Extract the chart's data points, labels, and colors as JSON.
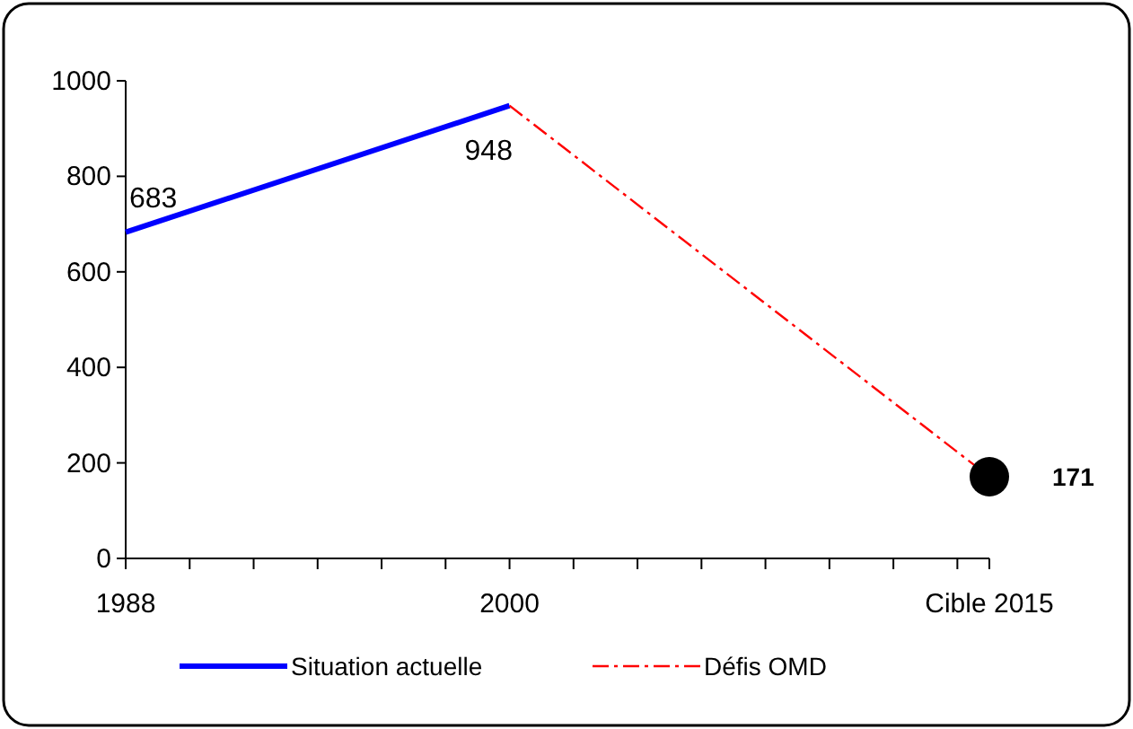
{
  "chart_data": {
    "type": "line",
    "xlim": [
      1988,
      2015
    ],
    "xticks": [
      {
        "value": 1988,
        "label": "1988"
      },
      {
        "value": 1990,
        "label": null
      },
      {
        "value": 1992,
        "label": null
      },
      {
        "value": 1994,
        "label": null
      },
      {
        "value": 1996,
        "label": null
      },
      {
        "value": 1998,
        "label": null
      },
      {
        "value": 2000,
        "label": "2000"
      },
      {
        "value": 2002,
        "label": null
      },
      {
        "value": 2004,
        "label": null
      },
      {
        "value": 2006,
        "label": null
      },
      {
        "value": 2008,
        "label": null
      },
      {
        "value": 2010,
        "label": null
      },
      {
        "value": 2012,
        "label": null
      },
      {
        "value": 2014,
        "label": null
      },
      {
        "value": 2015,
        "label": "Cible 2015"
      }
    ],
    "ylim": [
      0,
      1000
    ],
    "yticks": [
      0,
      200,
      400,
      600,
      800,
      1000
    ],
    "grid": false,
    "legend": "bottom",
    "series": [
      {
        "name": "Situation actuelle",
        "color": "#0000ff",
        "x": [
          1988,
          2000
        ],
        "values": [
          683,
          948
        ],
        "line_style": "solid",
        "marker": "none",
        "value_labels": [
          "683",
          "948"
        ]
      },
      {
        "name": "Défis OMD",
        "color": "#ff0000",
        "x": [
          2000,
          2015
        ],
        "values": [
          948,
          171
        ],
        "line_style": "dashed",
        "marker": "none",
        "value_labels": [
          null,
          null
        ]
      },
      {
        "type": "scatter",
        "color": "#000000",
        "x": [
          2015
        ],
        "values": [
          171
        ],
        "marker": "circle",
        "value_labels": [
          "171"
        ]
      }
    ]
  }
}
